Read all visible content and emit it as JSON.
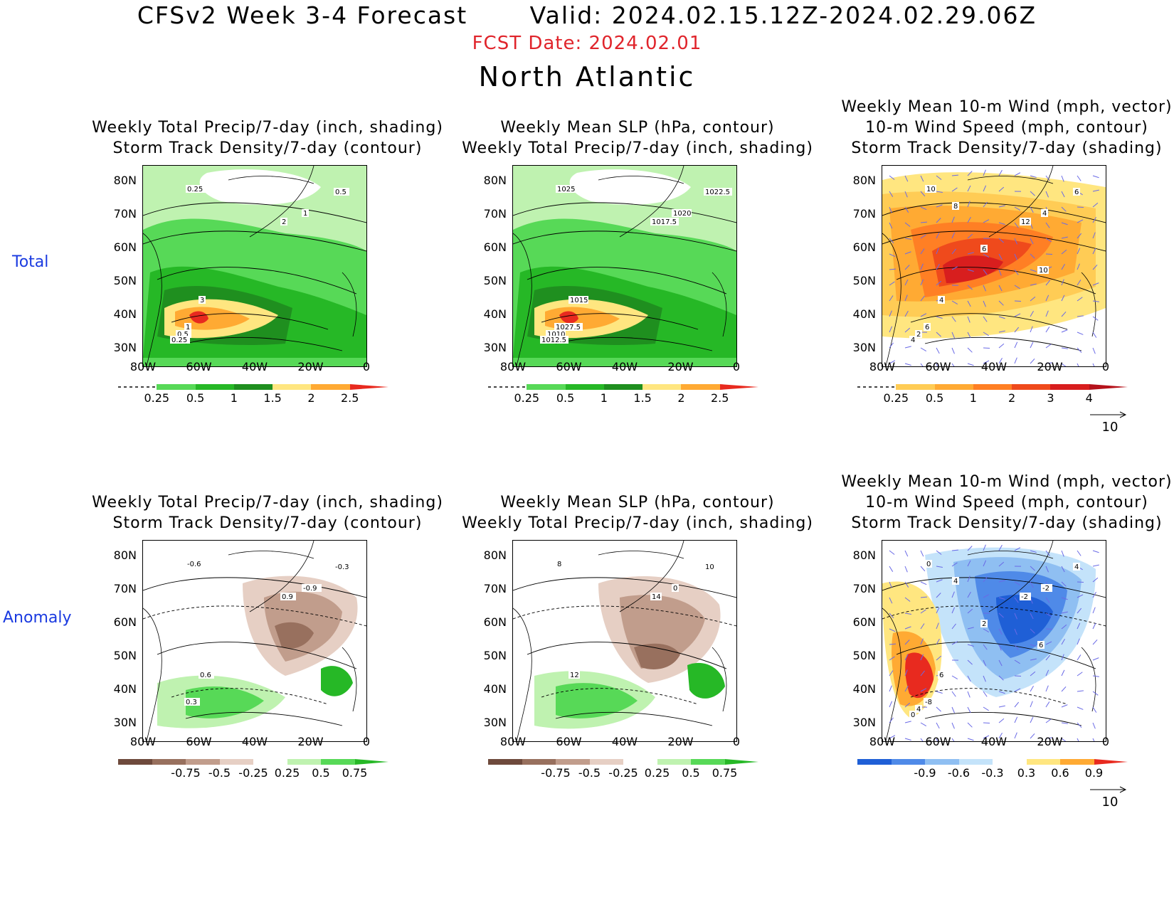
{
  "header": {
    "main": "CFSv2 Week 3-4 Forecast       Valid: 2024.02.15.12Z-2024.02.29.06Z",
    "fcst_date": "FCST Date: 2024.02.01",
    "region": "North Atlantic"
  },
  "row_labels": {
    "total": "Total",
    "anomaly": "Anomaly"
  },
  "axis": {
    "lat_labels": [
      "80N",
      "70N",
      "60N",
      "50N",
      "40N",
      "30N"
    ],
    "lon_labels": [
      "80W",
      "60W",
      "40W",
      "20W",
      "0"
    ]
  },
  "panels": [
    {
      "id": "total-precip",
      "title1": "",
      "title2": "Weekly Total Precip/7-day (inch, shading)",
      "title3": "Storm Track Density/7-day (contour)",
      "contour_labels": [
        "0.25",
        "0.5",
        "1",
        "2",
        "3",
        "1",
        "0.5",
        "0.25"
      ],
      "colorbar": {
        "ticks": [
          "0.25",
          "0.5",
          "1",
          "1.5",
          "2",
          "2.5"
        ],
        "colors": [
          "#bff2b0",
          "#57d957",
          "#26b826",
          "#1f8f1f",
          "#ffe680",
          "#ffaa33",
          "#e82a1f"
        ]
      }
    },
    {
      "id": "total-slp",
      "title1": "",
      "title2": "Weekly Mean SLP (hPa, contour)",
      "title3": "Weekly Total Precip/7-day (inch, shading)",
      "contour_labels": [
        "1025",
        "1022.5",
        "1020",
        "1017.5",
        "1015",
        "1027.5",
        "1010",
        "1012.5"
      ],
      "colorbar": {
        "ticks": [
          "0.25",
          "0.5",
          "1",
          "1.5",
          "2",
          "2.5"
        ],
        "colors": [
          "#bff2b0",
          "#57d957",
          "#26b826",
          "#1f8f1f",
          "#ffe680",
          "#ffaa33",
          "#e82a1f"
        ]
      }
    },
    {
      "id": "total-wind",
      "title1": "Weekly Mean 10-m Wind (mph, vector)",
      "title2": "10-m Wind Speed (mph, contour)",
      "title3": "Storm Track Density/7-day (shading)",
      "contour_labels": [
        "10",
        "6",
        "4",
        "12",
        "4",
        "6",
        "2",
        "4",
        "6",
        "10",
        "8"
      ],
      "vector_ref": "10",
      "colorbar": {
        "ticks": [
          "0.25",
          "0.5",
          "1",
          "2",
          "3",
          "4"
        ],
        "colors": [
          "#ffe680",
          "#ffcc55",
          "#ffaa33",
          "#ff7f24",
          "#ef4a1c",
          "#d81e1e",
          "#b5121b"
        ]
      }
    },
    {
      "id": "anom-precip",
      "title1": "",
      "title2": "Weekly Total Precip/7-day (inch, shading)",
      "title3": "Storm Track Density/7-day (contour)",
      "contour_labels": [
        "-0.6",
        "-0.3",
        "-0.9",
        "0.9",
        "0.6",
        "0.3"
      ],
      "colorbar": {
        "ticks": [
          "-0.75",
          "-0.5",
          "-0.25",
          "0.25",
          "0.5",
          "0.75"
        ],
        "colors": [
          "#6e4a3c",
          "#98705e",
          "#c19d8c",
          "#e6cfc4",
          "#ffffff",
          "#bff2b0",
          "#57d957",
          "#26b826"
        ]
      }
    },
    {
      "id": "anom-slp",
      "title1": "",
      "title2": "Weekly Mean SLP (hPa, contour)",
      "title3": "Weekly Total Precip/7-day (inch, shading)",
      "contour_labels": [
        "8",
        "10",
        "0",
        "14",
        "12"
      ],
      "colorbar": {
        "ticks": [
          "-0.75",
          "-0.5",
          "-0.25",
          "0.25",
          "0.5",
          "0.75"
        ],
        "colors": [
          "#6e4a3c",
          "#98705e",
          "#c19d8c",
          "#e6cfc4",
          "#ffffff",
          "#bff2b0",
          "#57d957",
          "#26b826"
        ]
      }
    },
    {
      "id": "anom-wind",
      "title1": "Weekly Mean 10-m Wind (mph, vector)",
      "title2": "10-m Wind Speed (mph, contour)",
      "title3": "Storm Track Density/7-day (shading)",
      "contour_labels": [
        "0",
        "4",
        "-2",
        "-2",
        "6",
        "-8",
        "4",
        "0",
        "2",
        "6",
        "4"
      ],
      "vector_ref": "10",
      "colorbar": {
        "ticks": [
          "-0.9",
          "-0.6",
          "-0.3",
          "0.3",
          "0.6",
          "0.9"
        ],
        "colors": [
          "#1f5fd6",
          "#4f8ae8",
          "#8fbff2",
          "#c4e3fa",
          "#ffffff",
          "#ffe680",
          "#ffaa33",
          "#e82a1f"
        ]
      }
    }
  ]
}
